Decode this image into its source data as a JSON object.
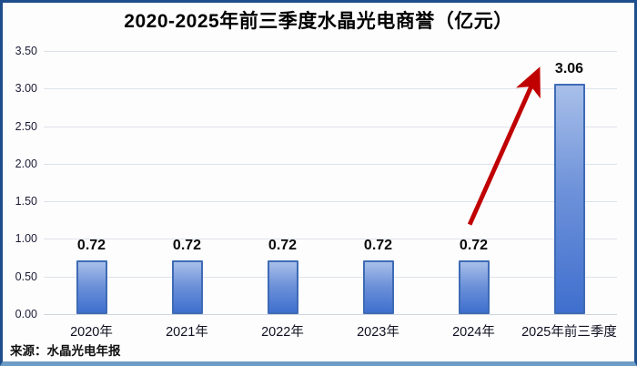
{
  "source_note": "来源：水晶光电年报",
  "chart_data": {
    "type": "bar",
    "title": "2020-2025年前三季度水晶光电商誉（亿元）",
    "categories": [
      "2020年",
      "2021年",
      "2022年",
      "2023年",
      "2024年",
      "2025年前三季度"
    ],
    "values": [
      0.72,
      0.72,
      0.72,
      0.72,
      0.72,
      3.06
    ],
    "data_labels": [
      "0.72",
      "0.72",
      "0.72",
      "0.72",
      "0.72",
      "3.06"
    ],
    "xlabel": "",
    "ylabel": "",
    "ylim": [
      0,
      3.5
    ],
    "ytick_step": 0.5,
    "ytick_labels": [
      "0.00",
      "0.50",
      "1.00",
      "1.50",
      "2.00",
      "2.50",
      "3.00",
      "3.50"
    ],
    "grid": true,
    "legend": "none",
    "annotation": {
      "type": "arrow",
      "description": "red arrow rising from above the 2024 bar label to the top of the 2025 bar",
      "from_category_index": 4,
      "to_category_index": 5
    },
    "colors": {
      "bar_fill_top": "#a8bfe9",
      "bar_fill_bottom": "#3f6fce",
      "bar_border": "#3e6bb5",
      "arrow": "#c00000",
      "gridline": "#dde2ea",
      "frame_border": "#1f4e8c",
      "frame_bottom_border": "#6d9dc5",
      "title_text": "#000000"
    }
  }
}
